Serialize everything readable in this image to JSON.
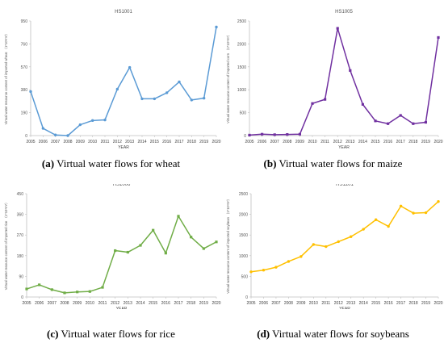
{
  "panels": [
    {
      "caption_letter": "(a)",
      "caption_text": "Virtual water flows for wheat",
      "color": "#5b9bd5",
      "marker": "circle"
    },
    {
      "caption_letter": "(b)",
      "caption_text": "Virtual water flows for maize",
      "color": "#7030a0",
      "marker": "square"
    },
    {
      "caption_letter": "(c)",
      "caption_text": "Virtual water flows for rice",
      "color": "#70ad47",
      "marker": "square"
    },
    {
      "caption_letter": "(d)",
      "caption_text": "Virtual water flows for soybeans",
      "color": "#ffc000",
      "marker": "circle"
    }
  ],
  "chart_data": [
    {
      "type": "line",
      "title": "HS1001",
      "xlabel": "YEAR",
      "ylabel": "Virtual water resource content of imported wheat （1*10⁸m³）",
      "x": [
        "2005",
        "2006",
        "2007",
        "2008",
        "2009",
        "2010",
        "2011",
        "2012",
        "2013",
        "2014",
        "2015",
        "2016",
        "2017",
        "2018",
        "2019",
        "2020"
      ],
      "yticks": [
        "0",
        "190",
        "380",
        "570",
        "760",
        "950"
      ],
      "ylim": [
        0,
        950
      ],
      "series": [
        {
          "values": [
            365,
            60,
            5,
            0,
            90,
            125,
            130,
            385,
            565,
            305,
            305,
            355,
            445,
            295,
            310,
            900
          ]
        }
      ]
    },
    {
      "type": "line",
      "title": "HS1005",
      "xlabel": "YEAR",
      "ylabel": "Virtual water resource content of imported corn （1*10⁸m³）",
      "x": [
        "2005",
        "2006",
        "2007",
        "2008",
        "2009",
        "2010",
        "2011",
        "2012",
        "2013",
        "2014",
        "2015",
        "2016",
        "2017",
        "2018",
        "2019",
        "2020"
      ],
      "yticks": [
        "0",
        "500",
        "1000",
        "1500",
        "2000",
        "2500"
      ],
      "ylim": [
        0,
        2500
      ],
      "series": [
        {
          "values": [
            10,
            30,
            20,
            25,
            30,
            700,
            790,
            2340,
            1420,
            680,
            320,
            260,
            440,
            260,
            290,
            2140
          ]
        }
      ]
    },
    {
      "type": "line",
      "title": "HS1006",
      "xlabel": "YEAR",
      "ylabel": "Virtual water resource content of imported rice （1*10⁸m³）",
      "x": [
        "2005",
        "2006",
        "2007",
        "2008",
        "2009",
        "2010",
        "2011",
        "2012",
        "2013",
        "2014",
        "2015",
        "2016",
        "2017",
        "2018",
        "2019",
        "2020"
      ],
      "yticks": [
        "0",
        "90",
        "180",
        "270",
        "360",
        "450"
      ],
      "ylim": [
        0,
        450
      ],
      "series": [
        {
          "values": [
            35,
            53,
            32,
            18,
            22,
            24,
            42,
            202,
            195,
            225,
            291,
            191,
            352,
            261,
            211,
            240
          ]
        }
      ]
    },
    {
      "type": "line",
      "title": "HS1201",
      "xlabel": "YEAR",
      "ylabel": "Virtual water resource content of imported soybean （1*10⁸m³）",
      "x": [
        "2005",
        "2006",
        "2007",
        "2008",
        "2009",
        "2010",
        "2011",
        "2012",
        "2013",
        "2014",
        "2015",
        "2016",
        "2017",
        "2018",
        "2019",
        "2020"
      ],
      "yticks": [
        "0",
        "500",
        "1000",
        "1500",
        "2000",
        "2500"
      ],
      "ylim": [
        0,
        2500
      ],
      "series": [
        {
          "values": [
            610,
            650,
            720,
            860,
            980,
            1270,
            1220,
            1340,
            1460,
            1640,
            1870,
            1710,
            2200,
            2030,
            2040,
            2310
          ]
        }
      ]
    }
  ]
}
